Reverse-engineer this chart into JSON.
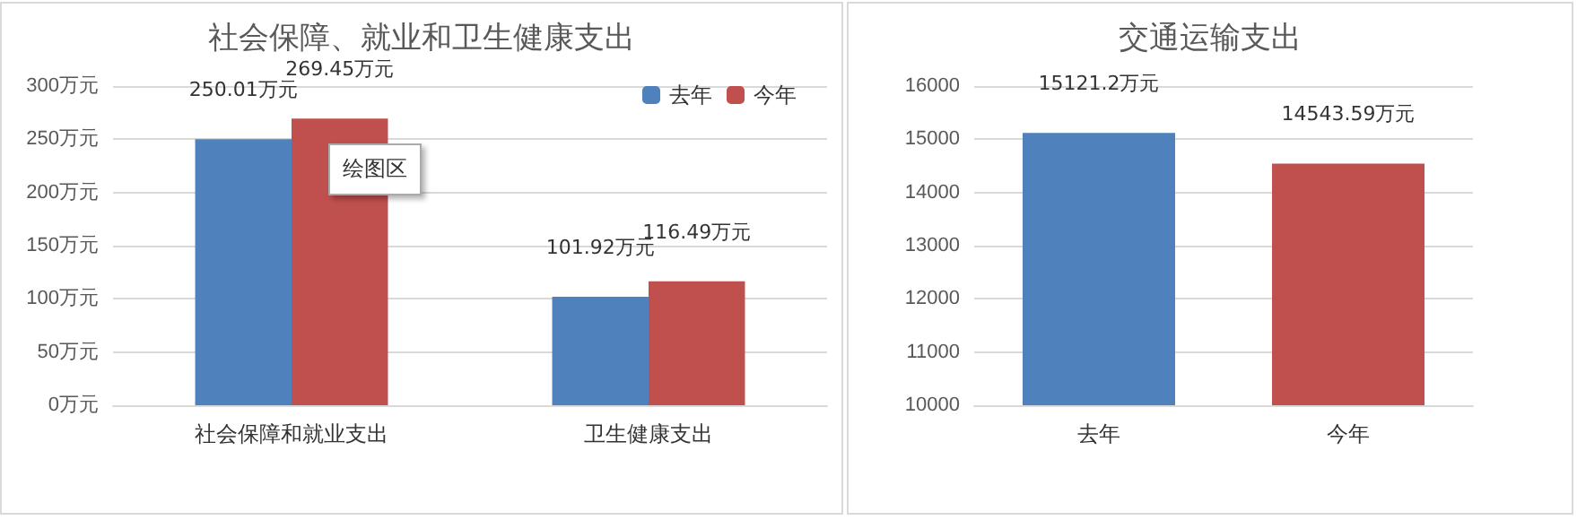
{
  "chart_data": [
    {
      "type": "bar",
      "title": "社会保障、就业和卫生健康支出",
      "categories": [
        "社会保障和就业支出",
        "卫生健康支出"
      ],
      "series": [
        {
          "name": "去年",
          "color": "#4f81bd",
          "values": [
            250.01,
            101.92
          ],
          "value_labels": [
            "250.01万元",
            "101.92万元"
          ]
        },
        {
          "name": "今年",
          "color": "#c0504d",
          "values": [
            269.45,
            116.49
          ],
          "value_labels": [
            "269.45万元",
            "116.49万元"
          ]
        }
      ],
      "ylim": [
        0,
        300
      ],
      "yticks": [
        {
          "value": 0,
          "label": "0万元"
        },
        {
          "value": 50,
          "label": "50万元"
        },
        {
          "value": 100,
          "label": "100万元"
        },
        {
          "value": 150,
          "label": "150万元"
        },
        {
          "value": 200,
          "label": "200万元"
        },
        {
          "value": 250,
          "label": "250万元"
        },
        {
          "value": 300,
          "label": "300万元"
        }
      ],
      "grid": "y",
      "legend": "top right",
      "annotations": [
        "绘图区"
      ]
    },
    {
      "type": "bar",
      "title": "交通运输支出",
      "categories": [
        "去年",
        "今年"
      ],
      "values": [
        15121.2,
        14543.59
      ],
      "colors": [
        "#4f81bd",
        "#c0504d"
      ],
      "value_labels": [
        "15121.2万元",
        "14543.59万元"
      ],
      "ylim": [
        10000,
        16000
      ],
      "yticks": [
        10000,
        11000,
        12000,
        13000,
        14000,
        15000,
        16000
      ],
      "grid": "y"
    }
  ]
}
